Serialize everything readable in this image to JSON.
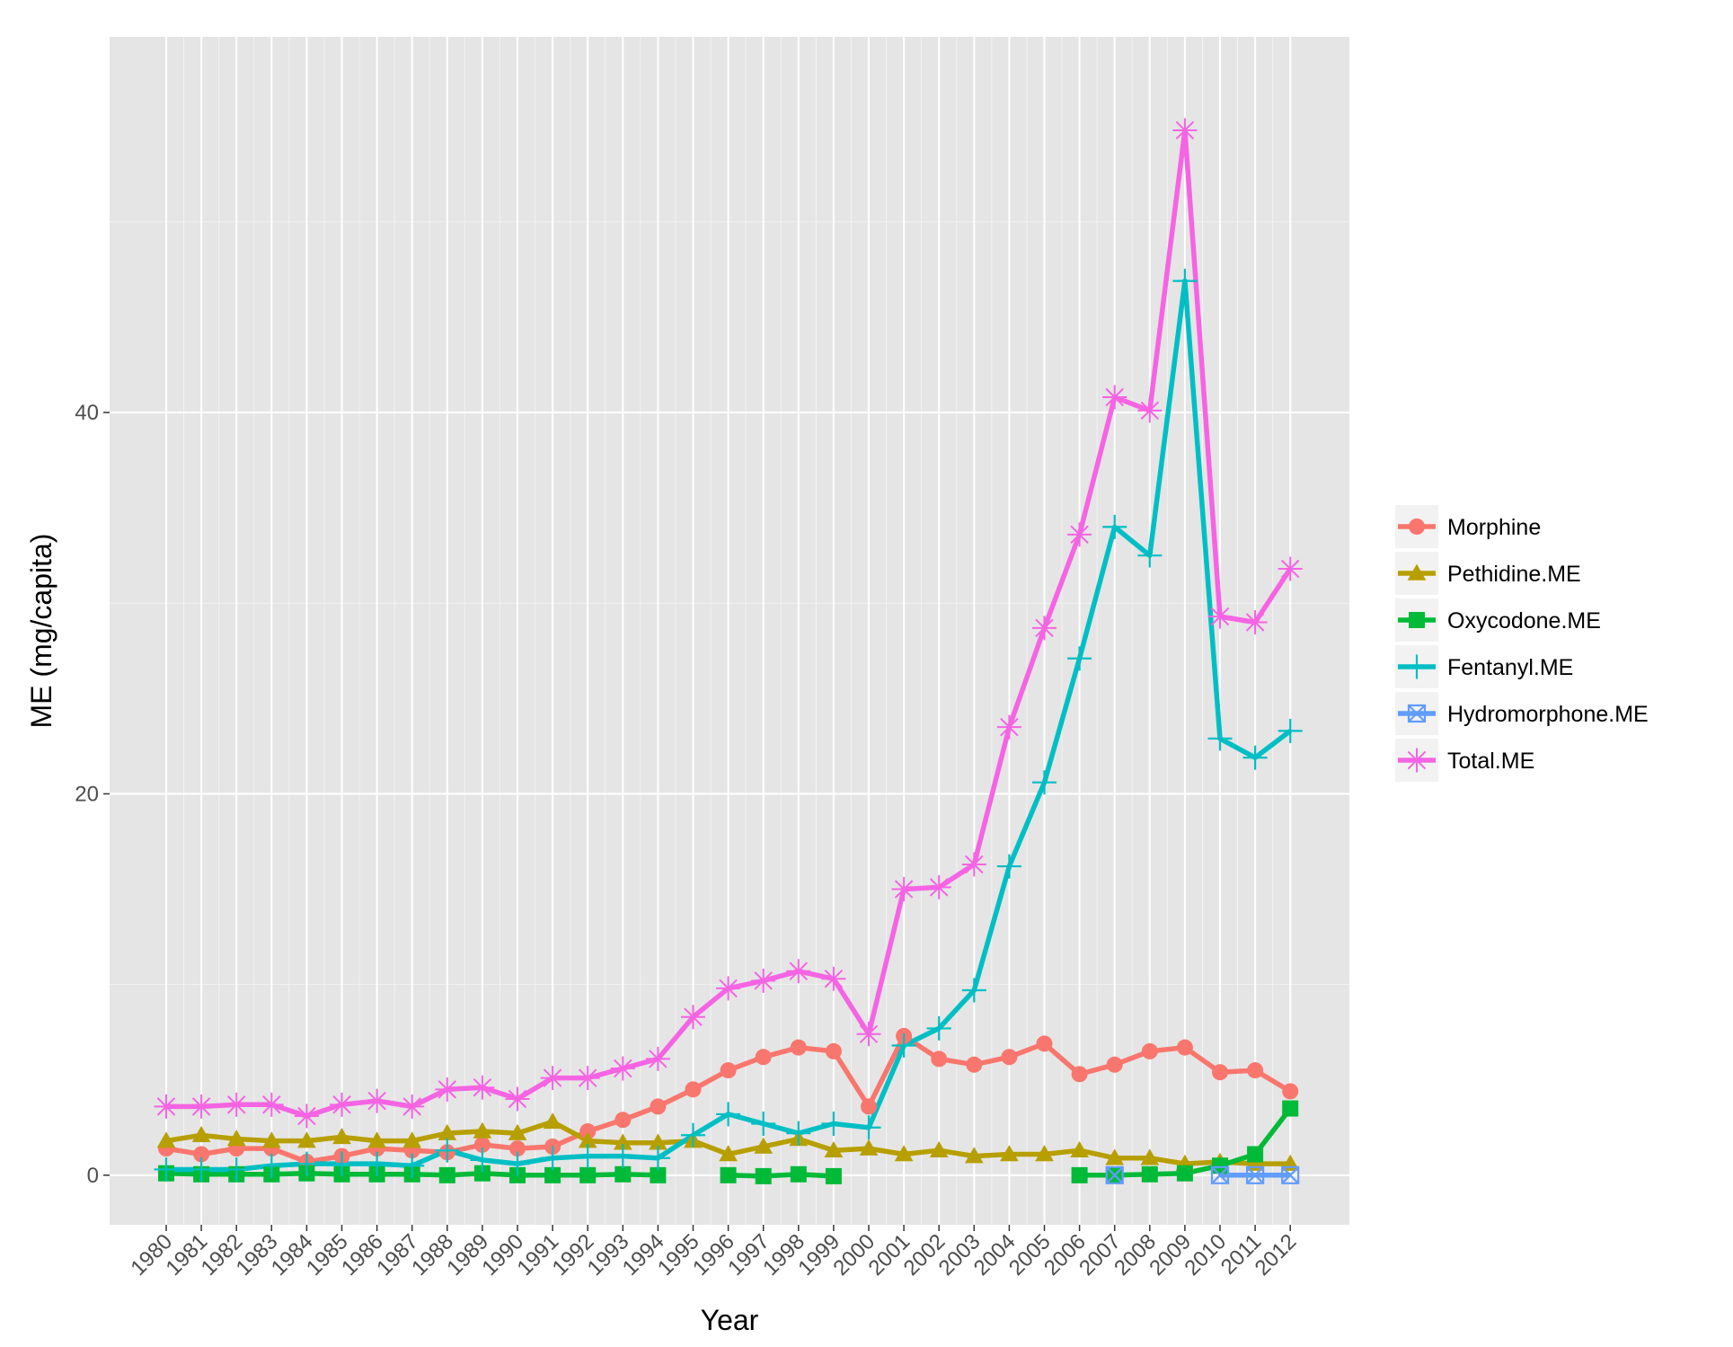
{
  "chart_data": {
    "type": "line",
    "title": "",
    "xlabel": "Year",
    "ylabel": "ME (mg/capita)",
    "ylim": [
      -2.6,
      59.7
    ],
    "y_ticks": [
      0,
      20,
      40
    ],
    "grid": true,
    "legend_position": "right",
    "categories": [
      "1980",
      "1981",
      "1982",
      "1983",
      "1984",
      "1985",
      "1986",
      "1987",
      "1988",
      "1989",
      "1990",
      "1991",
      "1992",
      "1993",
      "1994",
      "1995",
      "1996",
      "1997",
      "1998",
      "1999",
      "2000",
      "2001",
      "2002",
      "2003",
      "2004",
      "2005",
      "2006",
      "2007",
      "2008",
      "2009",
      "2010",
      "2011",
      "2012"
    ],
    "series": [
      {
        "name": "Morphine",
        "color": "#F8766D",
        "marker": "circle",
        "values": [
          1.4,
          1.1,
          1.4,
          1.4,
          0.7,
          1.0,
          1.4,
          1.3,
          1.2,
          1.6,
          1.4,
          1.5,
          2.3,
          2.9,
          3.6,
          4.5,
          5.5,
          6.2,
          6.7,
          6.5,
          3.6,
          7.3,
          6.1,
          5.8,
          6.2,
          6.9,
          5.3,
          5.8,
          6.5,
          6.7,
          5.4,
          5.5,
          4.4
        ]
      },
      {
        "name": "Pethidine.ME",
        "color": "#B79F00",
        "marker": "triangle",
        "values": [
          1.8,
          2.1,
          1.9,
          1.8,
          1.8,
          2.0,
          1.8,
          1.8,
          2.2,
          2.3,
          2.2,
          2.8,
          1.8,
          1.7,
          1.7,
          1.8,
          1.1,
          1.5,
          1.9,
          1.3,
          1.4,
          1.1,
          1.3,
          1.0,
          1.1,
          1.1,
          1.3,
          0.9,
          0.9,
          0.6,
          0.7,
          0.6,
          0.6
        ]
      },
      {
        "name": "Oxycodone.ME",
        "color": "#00BA38",
        "marker": "square",
        "values": [
          0.1,
          0.05,
          0.05,
          0.05,
          0.1,
          0.05,
          0.05,
          0.05,
          0.0,
          0.1,
          0.0,
          0.0,
          0.0,
          0.05,
          0.0,
          null,
          0.0,
          -0.05,
          0.05,
          -0.05,
          null,
          null,
          null,
          null,
          null,
          null,
          0.0,
          0.0,
          0.05,
          0.1,
          0.5,
          1.1,
          3.5
        ]
      },
      {
        "name": "Fentanyl.ME",
        "color": "#00BFC4",
        "marker": "plus",
        "values": [
          0.3,
          0.3,
          0.3,
          0.5,
          0.6,
          0.6,
          0.6,
          0.5,
          1.3,
          0.8,
          0.6,
          0.9,
          1.0,
          1.0,
          0.9,
          2.1,
          3.2,
          2.7,
          2.2,
          2.7,
          2.5,
          6.8,
          7.7,
          9.7,
          16.2,
          20.6,
          27.1,
          34.0,
          32.5,
          46.9,
          22.9,
          21.9,
          23.3
        ]
      },
      {
        "name": "Hydromorphone.ME",
        "color": "#619CFF",
        "marker": "boxx",
        "values": [
          null,
          null,
          null,
          null,
          null,
          null,
          null,
          null,
          null,
          null,
          null,
          null,
          null,
          null,
          null,
          null,
          null,
          null,
          null,
          null,
          null,
          null,
          null,
          null,
          null,
          null,
          null,
          0.0,
          null,
          null,
          0.0,
          0.0,
          0.0
        ]
      },
      {
        "name": "Total.ME",
        "color": "#F564E3",
        "marker": "asterisk",
        "values": [
          3.6,
          3.6,
          3.7,
          3.7,
          3.1,
          3.7,
          3.9,
          3.6,
          4.5,
          4.6,
          4.0,
          5.1,
          5.1,
          5.6,
          6.1,
          8.3,
          9.8,
          10.2,
          10.7,
          10.3,
          7.4,
          15.0,
          15.1,
          16.3,
          23.5,
          28.7,
          33.6,
          40.8,
          40.1,
          54.8,
          29.3,
          29.0,
          31.8
        ]
      }
    ]
  }
}
